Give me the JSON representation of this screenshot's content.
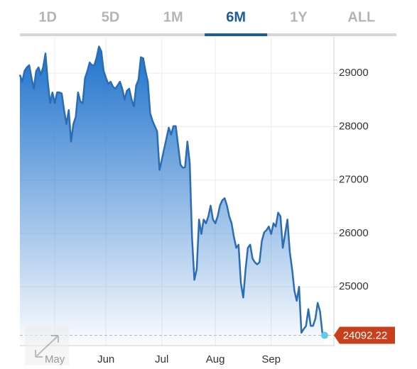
{
  "tabs": {
    "items": [
      "1D",
      "5D",
      "1M",
      "6M",
      "1Y",
      "ALL"
    ],
    "selected": 3
  },
  "chart_data": {
    "type": "area",
    "categories": [
      null,
      null,
      null,
      null,
      null,
      null,
      null,
      null,
      null,
      null,
      null,
      null,
      null,
      null,
      null,
      "May",
      null,
      null,
      null,
      null,
      null,
      null,
      null,
      null,
      null,
      null,
      null,
      null,
      null,
      null,
      null,
      null,
      null,
      null,
      null,
      null,
      null,
      "Jun",
      null,
      null,
      null,
      null,
      null,
      null,
      null,
      null,
      null,
      null,
      null,
      null,
      null,
      null,
      null,
      null,
      null,
      null,
      null,
      null,
      null,
      null,
      null,
      "Jul",
      null,
      null,
      null,
      null,
      null,
      null,
      null,
      null,
      null,
      null,
      null,
      null,
      null,
      null,
      null,
      null,
      null,
      null,
      null,
      null,
      null,
      null,
      "Aug",
      null,
      null,
      null,
      null,
      null,
      null,
      null,
      null,
      null,
      null,
      null,
      null,
      null,
      null,
      null,
      null,
      null,
      null,
      null,
      null,
      null,
      null,
      null,
      "Sep",
      null,
      null,
      null,
      null,
      null,
      null,
      null,
      null,
      null,
      null,
      null,
      null,
      null,
      null,
      null,
      null,
      null,
      null,
      null,
      null,
      null,
      null,
      null
    ],
    "values": [
      28970,
      28840,
      29040,
      29110,
      29150,
      28910,
      28710,
      29040,
      29110,
      28970,
      29110,
      29370,
      28840,
      28440,
      28640,
      28440,
      28640,
      28640,
      28620,
      28310,
      28050,
      28310,
      27720,
      28050,
      28180,
      28640,
      28470,
      28440,
      28910,
      29040,
      29200,
      29150,
      29150,
      29300,
      29500,
      29410,
      29040,
      28910,
      28800,
      28840,
      28750,
      28710,
      28770,
      28840,
      28710,
      28510,
      28670,
      28710,
      28510,
      28380,
      28770,
      28880,
      29300,
      29280,
      29040,
      28840,
      28250,
      28110,
      28010,
      27910,
      27190,
      27380,
      27580,
      27780,
      27980,
      27850,
      28010,
      28010,
      27650,
      27290,
      27230,
      27240,
      27720,
      27320,
      25930,
      25130,
      25330,
      26260,
      25990,
      26260,
      26190,
      26320,
      26520,
      26260,
      26190,
      26320,
      26520,
      26620,
      26660,
      26520,
      26320,
      26190,
      25930,
      25730,
      25790,
      25070,
      24800,
      25330,
      25730,
      25790,
      25530,
      25460,
      25420,
      25460,
      25860,
      26020,
      26060,
      26130,
      25990,
      26190,
      26130,
      26390,
      26320,
      25730,
      25990,
      26260,
      25660,
      25330,
      24930,
      24740,
      25000,
      24140,
      24210,
      24270,
      24580,
      24270,
      24270,
      24400,
      24700,
      24540,
      24140,
      24092.22
    ],
    "color": "#2a6db5",
    "fill_color": "#1f72cc",
    "last_color": "#5ecbe9",
    "label_color": "#c73f1c",
    "ylim": [
      23900,
      29680
    ],
    "yticks": [
      25000,
      26000,
      27000,
      28000,
      29000
    ],
    "grid": true
  }
}
